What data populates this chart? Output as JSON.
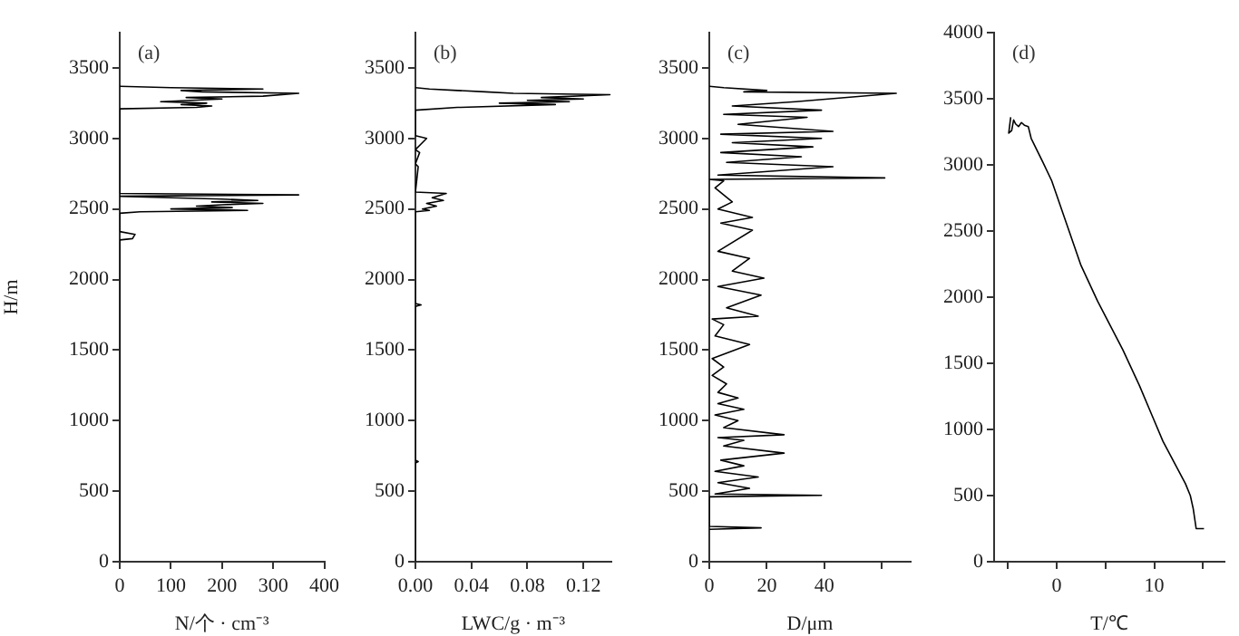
{
  "chart_data": [
    {
      "type": "line",
      "xlabel": "N/个 · cm⁻³",
      "ylabel": "H/m",
      "annotations": [
        "(a)"
      ],
      "marker": "none",
      "xlim": [
        0,
        400
      ],
      "xticks": [
        0,
        100,
        200,
        300,
        400
      ],
      "ylim": [
        0,
        3750
      ],
      "yticks": [
        0,
        500,
        1000,
        1500,
        2000,
        2500,
        3000,
        3500
      ],
      "series": [
        {
          "color": "#000000",
          "x": [
            0,
            0,
            25,
            30,
            0,
            0,
            40,
            250,
            100,
            220,
            150,
            200,
            280,
            180,
            270,
            200,
            100,
            0,
            350,
            0,
            0,
            150,
            180,
            120,
            170,
            80,
            140,
            200,
            130,
            280,
            350,
            160,
            120,
            280,
            100,
            0
          ],
          "values": [
            0,
            2280,
            2290,
            2320,
            2340,
            2470,
            2480,
            2490,
            2500,
            2510,
            2520,
            2530,
            2540,
            2550,
            2560,
            2570,
            2580,
            2590,
            2600,
            2610,
            3210,
            3220,
            3230,
            3240,
            3250,
            3260,
            3270,
            3280,
            3290,
            3300,
            3320,
            3330,
            3340,
            3350,
            3360,
            3370
          ]
        }
      ]
    },
    {
      "type": "line",
      "xlabel": "LWC/g · m⁻³",
      "annotations": [
        "(b)"
      ],
      "marker": "none",
      "xlim": [
        0,
        0.14
      ],
      "xticks": [
        {
          "value": 0,
          "label": "0.00"
        },
        0.04,
        0.08,
        0.12
      ],
      "ylim": [
        0,
        3750
      ],
      "yticks": [
        0,
        500,
        1000,
        1500,
        2000,
        2500,
        3000,
        3500
      ],
      "series": [
        {
          "color": "#000000",
          "x": [
            0,
            0,
            0.002,
            0,
            0,
            0.004,
            0,
            0,
            0.01,
            0.005,
            0.015,
            0.008,
            0.02,
            0.012,
            0.022,
            0,
            0.002,
            0,
            0.003,
            0,
            0.008,
            0,
            0,
            0.03,
            0.1,
            0.06,
            0.11,
            0.08,
            0.12,
            0.09,
            0.139,
            0.07,
            0.05,
            0.03,
            0.01,
            0
          ],
          "values": [
            0,
            700,
            710,
            720,
            1810,
            1820,
            1830,
            2480,
            2490,
            2500,
            2520,
            2540,
            2560,
            2580,
            2610,
            2620,
            2800,
            2820,
            2900,
            2920,
            3000,
            3020,
            3200,
            3220,
            3240,
            3250,
            3260,
            3270,
            3280,
            3290,
            3310,
            3320,
            3330,
            3340,
            3350,
            3360
          ]
        }
      ]
    },
    {
      "type": "line",
      "xlabel": "D/μm",
      "annotations": [
        "(c)"
      ],
      "marker": "none",
      "xlim": [
        0,
        70
      ],
      "xticks": [
        0,
        20,
        40,
        {
          "value": 60,
          "label": null
        }
      ],
      "ylim": [
        0,
        3750
      ],
      "yticks": [
        0,
        500,
        1000,
        1500,
        2000,
        2500,
        3000,
        3500
      ],
      "series": [
        {
          "color": "#000000",
          "x": [
            0,
            18,
            0,
            0,
            39,
            2,
            14,
            3,
            17,
            2,
            12,
            4,
            26,
            5,
            12,
            3,
            26,
            5,
            10,
            2,
            12,
            3,
            10,
            3,
            6,
            1,
            5,
            1,
            14,
            2,
            5,
            1,
            17,
            6,
            18,
            3,
            19,
            8,
            14,
            3,
            15,
            4,
            15,
            3,
            8,
            5,
            2,
            5,
            0,
            61,
            3,
            43,
            6,
            32,
            4,
            36,
            8,
            39,
            4,
            43,
            10,
            34,
            5,
            39,
            8,
            30,
            65,
            12,
            20,
            5,
            0
          ],
          "values": [
            230,
            240,
            250,
            460,
            470,
            480,
            520,
            560,
            600,
            640,
            680,
            720,
            770,
            820,
            860,
            880,
            900,
            950,
            1000,
            1040,
            1080,
            1120,
            1160,
            1200,
            1260,
            1320,
            1380,
            1440,
            1540,
            1600,
            1680,
            1720,
            1740,
            1800,
            1890,
            1950,
            2010,
            2060,
            2150,
            2200,
            2350,
            2400,
            2440,
            2500,
            2550,
            2600,
            2650,
            2700,
            2710,
            2720,
            2740,
            2800,
            2830,
            2870,
            2900,
            2940,
            2970,
            3000,
            3030,
            3050,
            3100,
            3150,
            3170,
            3200,
            3230,
            3260,
            3320,
            3330,
            3340,
            3360,
            3370
          ]
        }
      ]
    },
    {
      "type": "line",
      "xlabel": "T/℃",
      "annotations": [
        "(d)"
      ],
      "marker": "none",
      "xlim": [
        -6.4,
        17.2
      ],
      "xticks": [
        {
          "value": -5,
          "label": null
        },
        0,
        {
          "value": 5,
          "label": null
        },
        10,
        {
          "value": 15,
          "label": null
        }
      ],
      "ylim": [
        0,
        4000
      ],
      "yticks": [
        0,
        500,
        1000,
        1500,
        2000,
        2500,
        3000,
        3500,
        4000
      ],
      "series": [
        {
          "color": "#000000",
          "x": [
            15.1,
            14.3,
            14,
            13.7,
            13.2,
            10.9,
            8.5,
            6.8,
            4.2,
            2.5,
            1,
            -0.5,
            -1.4,
            -2.6,
            -2.9,
            -3.3,
            -3.6,
            -3.9,
            -4.2,
            -4.4,
            -4.6,
            -4.9,
            -4.7
          ],
          "values": [
            250,
            250,
            400,
            500,
            590,
            910,
            1330,
            1600,
            1970,
            2240,
            2560,
            2880,
            3020,
            3200,
            3290,
            3300,
            3320,
            3290,
            3310,
            3340,
            3260,
            3240,
            3360
          ]
        }
      ]
    }
  ]
}
